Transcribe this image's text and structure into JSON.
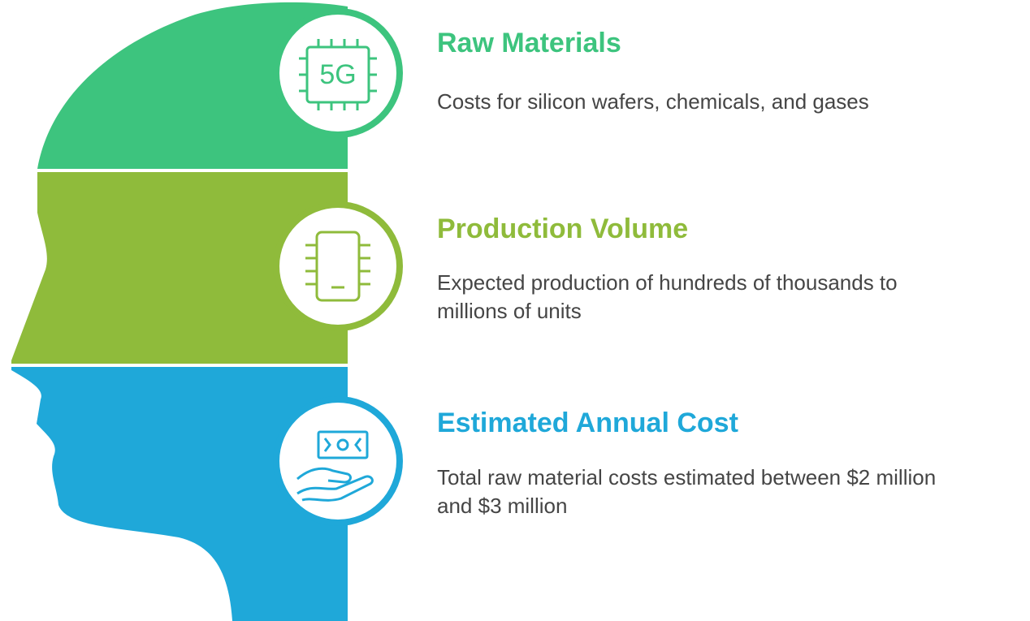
{
  "items": [
    {
      "title": "Raw Materials",
      "icon_text": "5G",
      "description": [
        "Costs for silicon wafers, chemicals, and gases"
      ]
    },
    {
      "title": "Production Volume",
      "description": [
        "Expected production of hundreds of thousands to",
        "millions of units"
      ]
    },
    {
      "title": "Estimated Annual Cost",
      "description": [
        "Total raw material costs estimated between $2 million",
        "and $3 million"
      ]
    }
  ]
}
